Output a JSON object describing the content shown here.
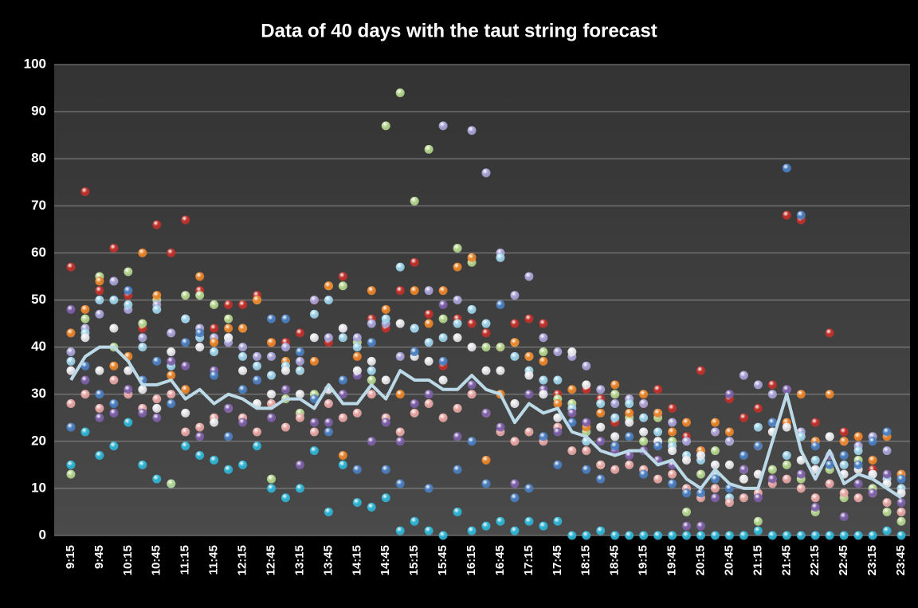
{
  "chart_data": {
    "type": "scatter",
    "title": "Data of 40 days with the taut string forecast",
    "categories": [
      "9:15",
      null,
      "9:45",
      null,
      "10:15",
      null,
      "10:45",
      null,
      "11:15",
      null,
      "11:45",
      null,
      "12:15",
      null,
      "12:45",
      null,
      "13:15",
      null,
      "13:45",
      null,
      "14:15",
      null,
      "14:45",
      null,
      "15:15",
      null,
      "15:45",
      null,
      "16:15",
      null,
      "16:45",
      null,
      "17:15",
      null,
      "17:45",
      null,
      "18:15",
      null,
      "18:45",
      null,
      "19:15",
      null,
      "19:45",
      null,
      "20:15",
      null,
      "20:45",
      null,
      "21:15",
      null,
      "21:45",
      null,
      "22:15",
      null,
      "22:45",
      null,
      "23:15",
      null,
      "23:45"
    ],
    "ylim": [
      0,
      100
    ],
    "yticks": [
      0,
      10,
      20,
      30,
      40,
      50,
      60,
      70,
      80,
      90,
      100
    ],
    "grid": true,
    "series": [
      {
        "type": "scatter",
        "color": "#c0302a",
        "values": [
          57,
          73,
          52,
          61,
          51,
          44,
          66,
          60,
          67,
          52,
          44,
          49,
          49,
          51,
          41,
          41,
          43,
          50,
          41,
          55,
          38,
          46,
          44,
          52,
          58,
          47,
          36,
          46,
          45,
          43,
          40,
          45,
          46,
          45,
          30,
          28,
          31,
          29,
          24,
          26,
          28,
          31,
          27,
          21,
          35,
          22,
          29,
          25,
          27,
          32,
          68,
          67,
          24,
          43,
          22,
          21,
          14,
          12,
          10
        ]
      },
      {
        "type": "scatter",
        "color": "#2fb4d4",
        "values": [
          15,
          22,
          17,
          19,
          24,
          15,
          12,
          11,
          19,
          17,
          16,
          14,
          15,
          19,
          10,
          8,
          10,
          18,
          5,
          15,
          7,
          6,
          8,
          1,
          3,
          1,
          0,
          5,
          1,
          2,
          3,
          1,
          3,
          2,
          3,
          0,
          0,
          1,
          0,
          0,
          0,
          0,
          0,
          0,
          0,
          0,
          0,
          0,
          1,
          0,
          0,
          0,
          0,
          0,
          0,
          0,
          0,
          1,
          0
        ]
      },
      {
        "type": "scatter",
        "color": "#b4d48e",
        "values": [
          13,
          46,
          55,
          40,
          56,
          45,
          50,
          11,
          51,
          51,
          49,
          46,
          44,
          50,
          12,
          29,
          26,
          30,
          53,
          53,
          41,
          33,
          87,
          94,
          71,
          82,
          46,
          61,
          58,
          40,
          40,
          41,
          38,
          39,
          29,
          28,
          22,
          15,
          30,
          25,
          20,
          25,
          20,
          5,
          13,
          18,
          20,
          12,
          3,
          14,
          15,
          12,
          5,
          14,
          8,
          16,
          10,
          5,
          3
        ]
      },
      {
        "type": "scatter",
        "color": "#a7a2d6",
        "values": [
          39,
          44,
          47,
          54,
          48,
          42,
          49,
          43,
          46,
          44,
          42,
          41,
          40,
          38,
          38,
          40,
          37,
          50,
          42,
          44,
          42,
          45,
          45,
          38,
          44,
          52,
          87,
          50,
          86,
          77,
          60,
          51,
          55,
          42,
          39,
          38,
          36,
          31,
          28,
          29,
          28,
          26,
          24,
          20,
          18,
          22,
          20,
          34,
          32,
          30,
          31,
          22,
          20,
          21,
          20,
          19,
          21,
          18,
          13
        ]
      },
      {
        "type": "scatter",
        "color": "#e8842a",
        "values": [
          43,
          48,
          54,
          36,
          38,
          60,
          51,
          34,
          31,
          55,
          41,
          44,
          44,
          50,
          41,
          37,
          35,
          37,
          53,
          17,
          38,
          52,
          48,
          30,
          52,
          45,
          52,
          57,
          59,
          16,
          30,
          41,
          38,
          37,
          28,
          31,
          23,
          26,
          32,
          26,
          30,
          26,
          22,
          24,
          18,
          24,
          22,
          14,
          19,
          12,
          24,
          30,
          20,
          30,
          20,
          21,
          16,
          21,
          13
        ]
      },
      {
        "type": "scatter",
        "color": "#9ed2e8",
        "values": [
          37,
          43,
          50,
          50,
          49,
          40,
          48,
          36,
          46,
          42,
          39,
          42,
          38,
          36,
          34,
          36,
          35,
          47,
          50,
          42,
          40,
          35,
          46,
          57,
          44,
          41,
          42,
          45,
          48,
          45,
          59,
          38,
          35,
          33,
          33,
          27,
          20,
          28,
          25,
          28,
          25,
          22,
          19,
          17,
          16,
          13,
          8,
          14,
          23,
          24,
          17,
          21,
          16,
          17,
          15,
          18,
          13,
          12,
          10
        ]
      },
      {
        "type": "scatter",
        "color": "#e6a6a4",
        "values": [
          28,
          30,
          27,
          33,
          30,
          27,
          29,
          30,
          22,
          23,
          25,
          27,
          25,
          22,
          28,
          23,
          25,
          22,
          28,
          25,
          26,
          30,
          25,
          22,
          26,
          28,
          25,
          27,
          30,
          26,
          22,
          20,
          22,
          20,
          23,
          18,
          18,
          15,
          14,
          15,
          14,
          12,
          13,
          10,
          8,
          10,
          7,
          8,
          9,
          11,
          12,
          10,
          8,
          11,
          9,
          8,
          9,
          7,
          5
        ]
      },
      {
        "type": "scatter",
        "color": "#7d5fa8",
        "values": [
          48,
          33,
          25,
          26,
          31,
          26,
          25,
          37,
          36,
          21,
          35,
          27,
          24,
          33,
          25,
          31,
          15,
          24,
          24,
          30,
          34,
          20,
          24,
          20,
          28,
          30,
          49,
          21,
          32,
          26,
          23,
          11,
          30,
          31,
          22,
          26,
          24,
          20,
          18,
          17,
          18,
          16,
          15,
          2,
          2,
          8,
          30,
          14,
          8,
          12,
          31,
          13,
          6,
          17,
          4,
          11,
          9,
          13,
          7
        ]
      },
      {
        "type": "scatter",
        "color": "#e6e6ea",
        "values": [
          35,
          42,
          35,
          44,
          35,
          31,
          27,
          39,
          26,
          40,
          24,
          42,
          35,
          28,
          30,
          35,
          30,
          42,
          31,
          44,
          35,
          37,
          33,
          45,
          38,
          37,
          33,
          42,
          40,
          35,
          35,
          28,
          34,
          30,
          25,
          39,
          32,
          23,
          21,
          24,
          22,
          20,
          18,
          16,
          17,
          15,
          15,
          12,
          13,
          22,
          23,
          16,
          14,
          21,
          13,
          14,
          13,
          11,
          9
        ]
      },
      {
        "type": "scatter",
        "color": "#4a7ec0",
        "values": [
          23,
          36,
          30,
          28,
          52,
          33,
          37,
          28,
          41,
          43,
          34,
          21,
          31,
          33,
          46,
          46,
          39,
          29,
          22,
          33,
          14,
          41,
          14,
          11,
          39,
          10,
          37,
          14,
          20,
          11,
          49,
          8,
          10,
          21,
          15,
          24,
          14,
          12,
          19,
          21,
          13,
          19,
          11,
          9,
          9,
          12,
          10,
          17,
          19,
          24,
          78,
          68,
          19,
          15,
          17,
          15,
          20,
          22,
          12
        ]
      },
      {
        "type": "line",
        "color": "#bcd9e8",
        "values": [
          33,
          38,
          40,
          40,
          37,
          32,
          32,
          33,
          29,
          31,
          28,
          30,
          29,
          27,
          27,
          29,
          29,
          27,
          32,
          28,
          28,
          32,
          29,
          35,
          33,
          33,
          31,
          31,
          34,
          31,
          30,
          24,
          28,
          26,
          27,
          22,
          21,
          18,
          17,
          18,
          18,
          15,
          16,
          12,
          10,
          14,
          11,
          10,
          10,
          20,
          30,
          18,
          12,
          18,
          11,
          13,
          12,
          10,
          8
        ]
      }
    ]
  }
}
